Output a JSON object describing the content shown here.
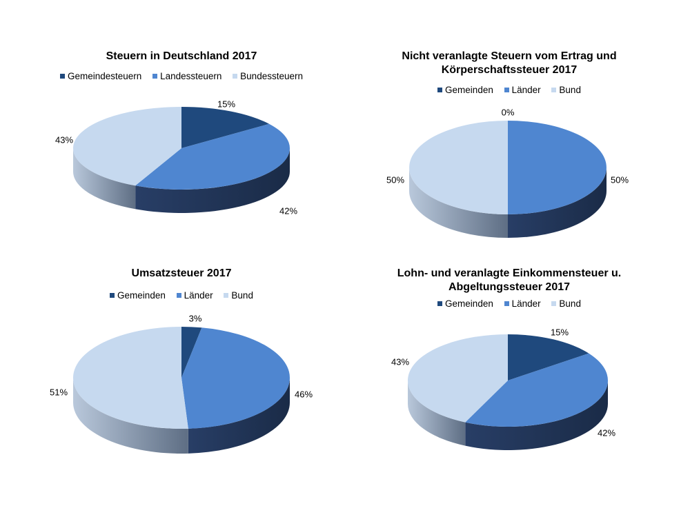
{
  "colors": {
    "dark": "#1f497d",
    "mid": "#4f86d0",
    "light": "#c6d9ef"
  },
  "chart_data": [
    {
      "type": "pie",
      "title": "Steuern in Deutschland 2017",
      "legend": [
        "Gemeindesteuern",
        "Landessteuern",
        "Bundessteuern"
      ],
      "values": [
        15,
        42,
        43
      ],
      "labels": [
        "15%",
        "42%",
        "43%"
      ]
    },
    {
      "type": "pie",
      "title": "Nicht veranlagte Steuern vom Ertrag und Körperschaftssteuer 2017",
      "legend": [
        "Gemeinden",
        "Länder",
        "Bund"
      ],
      "values": [
        0,
        50,
        50
      ],
      "labels": [
        "0%",
        "50%",
        "50%"
      ]
    },
    {
      "type": "pie",
      "title": "Umsatzsteuer 2017",
      "legend": [
        "Gemeinden",
        "Länder",
        "Bund"
      ],
      "values": [
        3,
        46,
        51
      ],
      "labels": [
        "3%",
        "46%",
        "51%"
      ]
    },
    {
      "type": "pie",
      "title": "Lohn- und veranlagte Einkommensteuer u. Abgeltungssteuer 2017",
      "legend": [
        "Gemeinden",
        "Länder",
        "Bund"
      ],
      "values": [
        15,
        42,
        43
      ],
      "labels": [
        "15%",
        "42%",
        "43%"
      ]
    }
  ]
}
